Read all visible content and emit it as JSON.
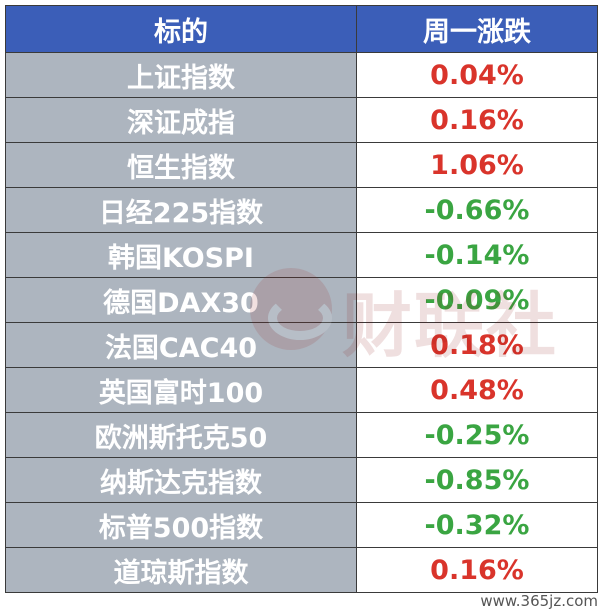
{
  "header": {
    "col_name": "标的",
    "col_change": "周一涨跌"
  },
  "colors": {
    "header_bg": "#3b5eb8",
    "name_bg": "#adb5bf",
    "up": "#d9342b",
    "down": "#3aa542"
  },
  "rows": [
    {
      "name": "上证指数",
      "change": "0.04%",
      "direction": "up"
    },
    {
      "name": "深证成指",
      "change": "0.16%",
      "direction": "up"
    },
    {
      "name": "恒生指数",
      "change": "1.06%",
      "direction": "up"
    },
    {
      "name": "日经225指数",
      "change": "-0.66%",
      "direction": "down"
    },
    {
      "name": "韩国KOSPI",
      "change": "-0.14%",
      "direction": "down"
    },
    {
      "name": "德国DAX30",
      "change": "-0.09%",
      "direction": "down"
    },
    {
      "name": "法国CAC40",
      "change": "0.18%",
      "direction": "up"
    },
    {
      "name": "英国富时100",
      "change": "0.48%",
      "direction": "up"
    },
    {
      "name": "欧洲斯托克50",
      "change": "-0.25%",
      "direction": "down"
    },
    {
      "name": "纳斯达克指数",
      "change": "-0.85%",
      "direction": "down"
    },
    {
      "name": "标普500指数",
      "change": "-0.32%",
      "direction": "down"
    },
    {
      "name": "道琼斯指数",
      "change": "0.16%",
      "direction": "up"
    }
  ],
  "watermark": {
    "text": "财联社",
    "icon": "cailianshe-logo-icon"
  },
  "footer": {
    "site": "www.365jz.com"
  }
}
